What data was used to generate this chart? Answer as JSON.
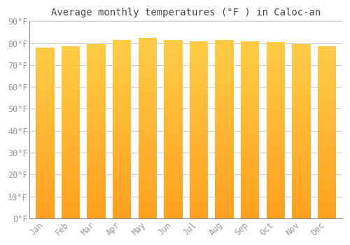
{
  "title": "Average monthly temperatures (°F ) in Caloc-an",
  "months": [
    "Jan",
    "Feb",
    "Mar",
    "Apr",
    "May",
    "Jun",
    "Jul",
    "Aug",
    "Sep",
    "Oct",
    "Nov",
    "Dec"
  ],
  "values": [
    78,
    78.5,
    79.5,
    81.5,
    82.5,
    81.5,
    81,
    81.5,
    81,
    80.5,
    79.5,
    78.5
  ],
  "bar_color_top": "#FFCC44",
  "bar_color_bottom": "#FFA020",
  "background_color": "#FFFFFF",
  "plot_bg_color": "#FFFFFF",
  "grid_color": "#CCCCCC",
  "text_color": "#999999",
  "ylim": [
    0,
    90
  ],
  "yticks": [
    0,
    10,
    20,
    30,
    40,
    50,
    60,
    70,
    80,
    90
  ],
  "ytick_labels": [
    "0°F",
    "10°F",
    "20°F",
    "30°F",
    "40°F",
    "50°F",
    "60°F",
    "70°F",
    "80°F",
    "90°F"
  ],
  "title_fontsize": 10,
  "tick_fontsize": 8.5,
  "bar_width": 0.72
}
